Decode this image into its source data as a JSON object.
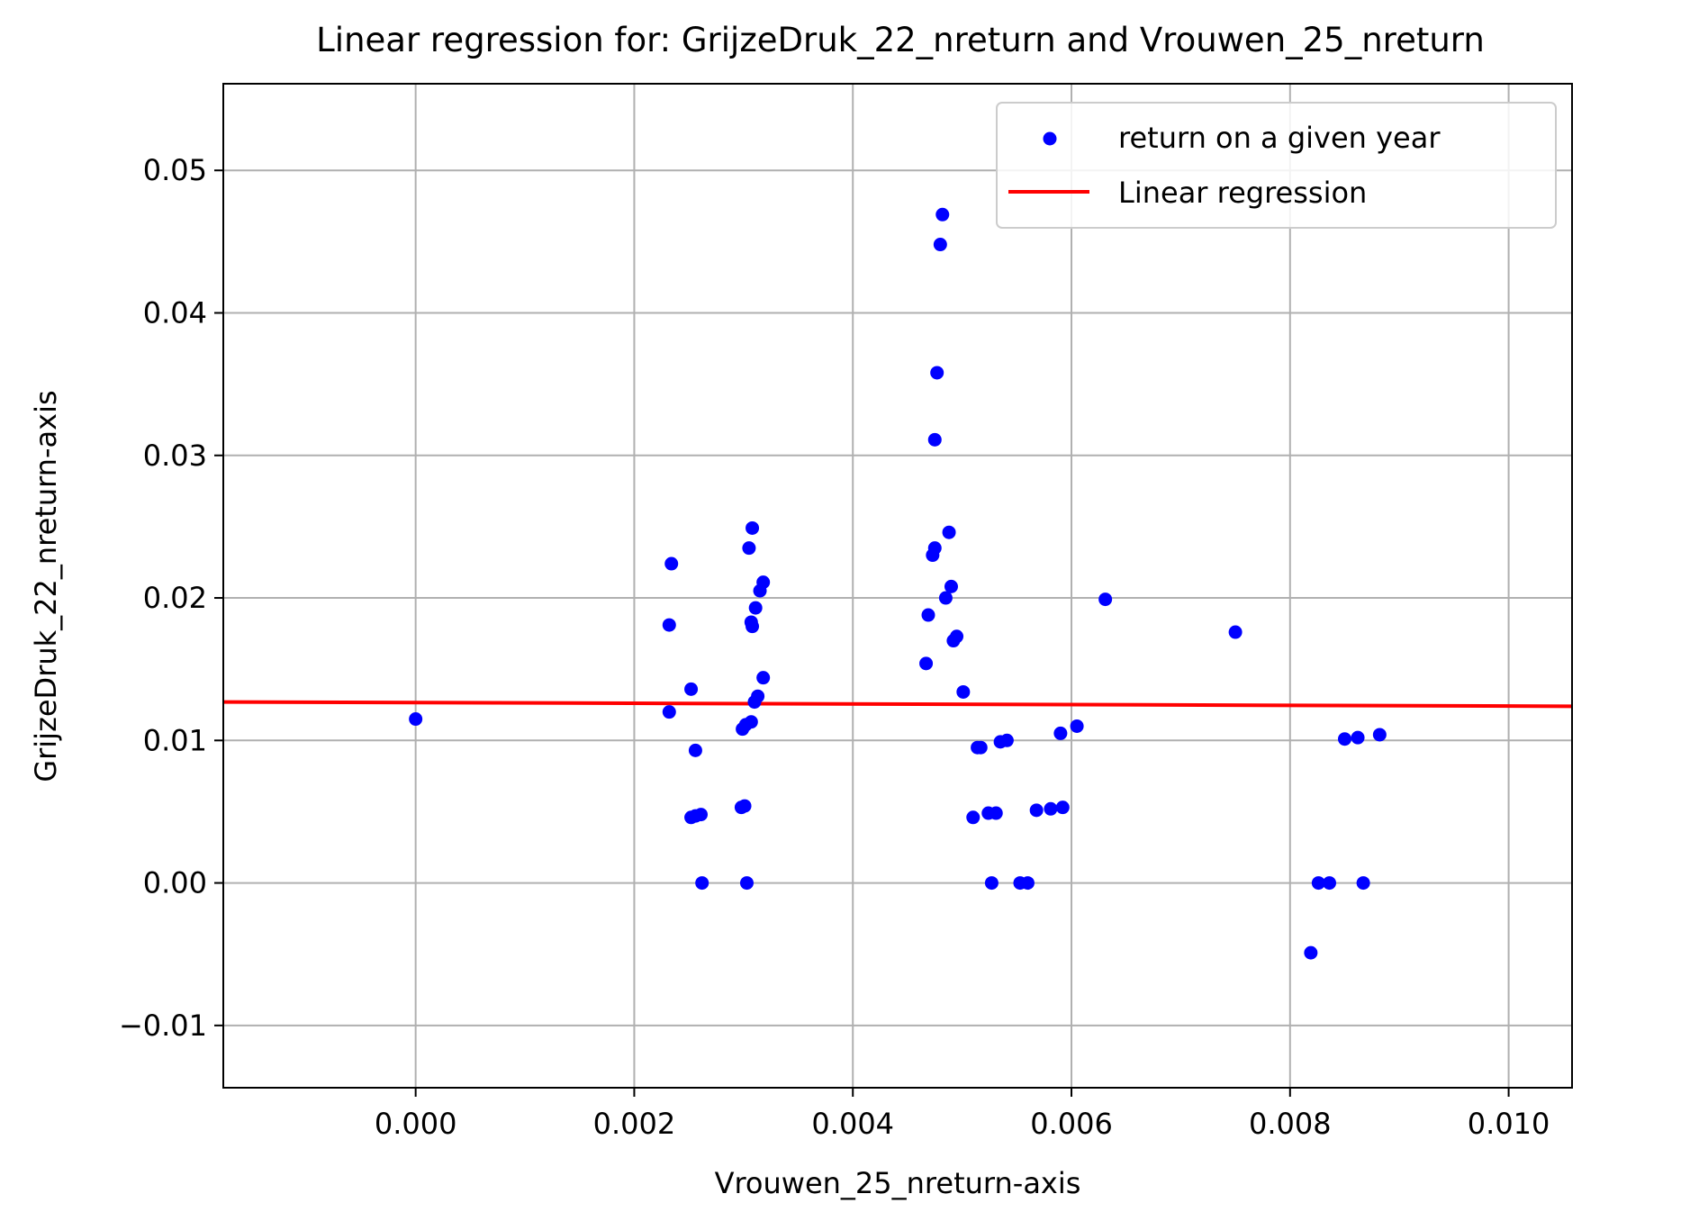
{
  "chart_data": {
    "type": "scatter",
    "title": "Linear regression for: GrijzeDruk_22_nreturn and Vrouwen_25_nreturn",
    "xlabel": "Vrouwen_25_nreturn-axis",
    "ylabel": "GrijzeDruk_22_nreturn-axis",
    "xlim": [
      -0.00176,
      0.01058
    ],
    "ylim": [
      -0.01437,
      0.05608
    ],
    "xticks": [
      0.0,
      0.002,
      0.004,
      0.006,
      0.008,
      0.01
    ],
    "xtick_labels": [
      "0.000",
      "0.002",
      "0.004",
      "0.006",
      "0.008",
      "0.010"
    ],
    "yticks": [
      -0.01,
      0.0,
      0.01,
      0.02,
      0.03,
      0.04,
      0.05
    ],
    "ytick_labels": [
      "−0.01",
      "0.00",
      "0.01",
      "0.02",
      "0.03",
      "0.04",
      "0.05"
    ],
    "grid": true,
    "legend_position": "upper right",
    "series": [
      {
        "name": "return on a given year",
        "kind": "scatter",
        "color": "#0000ff",
        "points": [
          [
            0.0,
            0.0115
          ],
          [
            0.00232,
            0.0181
          ],
          [
            0.00234,
            0.0224
          ],
          [
            0.00232,
            0.012
          ],
          [
            0.00252,
            0.0136
          ],
          [
            0.00256,
            0.0093
          ],
          [
            0.00252,
            0.0046
          ],
          [
            0.00256,
            0.0047
          ],
          [
            0.00261,
            0.0048
          ],
          [
            0.00262,
            0.0
          ],
          [
            0.00298,
            0.0053
          ],
          [
            0.00301,
            0.0054
          ],
          [
            0.00303,
            0.0
          ],
          [
            0.00299,
            0.0108
          ],
          [
            0.00302,
            0.0111
          ],
          [
            0.00307,
            0.0113
          ],
          [
            0.00305,
            0.0235
          ],
          [
            0.00308,
            0.0249
          ],
          [
            0.00308,
            0.018
          ],
          [
            0.00307,
            0.0183
          ],
          [
            0.00311,
            0.0193
          ],
          [
            0.0031,
            0.0127
          ],
          [
            0.00313,
            0.0131
          ],
          [
            0.00315,
            0.0205
          ],
          [
            0.00318,
            0.0211
          ],
          [
            0.00318,
            0.0144
          ],
          [
            0.00467,
            0.0154
          ],
          [
            0.00469,
            0.0188
          ],
          [
            0.00473,
            0.023
          ],
          [
            0.00475,
            0.0235
          ],
          [
            0.00475,
            0.0311
          ],
          [
            0.00477,
            0.0358
          ],
          [
            0.0048,
            0.0448
          ],
          [
            0.00482,
            0.0469
          ],
          [
            0.00485,
            0.02
          ],
          [
            0.00488,
            0.0246
          ],
          [
            0.0049,
            0.0208
          ],
          [
            0.00492,
            0.017
          ],
          [
            0.00495,
            0.0173
          ],
          [
            0.00501,
            0.0134
          ],
          [
            0.0051,
            0.0046
          ],
          [
            0.00514,
            0.0095
          ],
          [
            0.00517,
            0.0095
          ],
          [
            0.00524,
            0.0049
          ],
          [
            0.00527,
            0.0
          ],
          [
            0.00531,
            0.0049
          ],
          [
            0.00535,
            0.0099
          ],
          [
            0.00541,
            0.01
          ],
          [
            0.00553,
            0.0
          ],
          [
            0.0056,
            0.0
          ],
          [
            0.00568,
            0.0051
          ],
          [
            0.00581,
            0.0052
          ],
          [
            0.0059,
            0.0105
          ],
          [
            0.00592,
            0.0053
          ],
          [
            0.00605,
            0.011
          ],
          [
            0.00631,
            0.0199
          ],
          [
            0.0075,
            0.0176
          ],
          [
            0.00819,
            -0.0049
          ],
          [
            0.00826,
            0.0
          ],
          [
            0.00836,
            0.0
          ],
          [
            0.0085,
            0.0101
          ],
          [
            0.00862,
            0.0102
          ],
          [
            0.00867,
            0.0
          ],
          [
            0.00882,
            0.0104
          ]
        ]
      },
      {
        "name": "Linear regression",
        "kind": "line",
        "color": "#ff0000",
        "points": [
          [
            -0.00176,
            0.0127
          ],
          [
            0.01058,
            0.0124
          ]
        ]
      }
    ]
  }
}
